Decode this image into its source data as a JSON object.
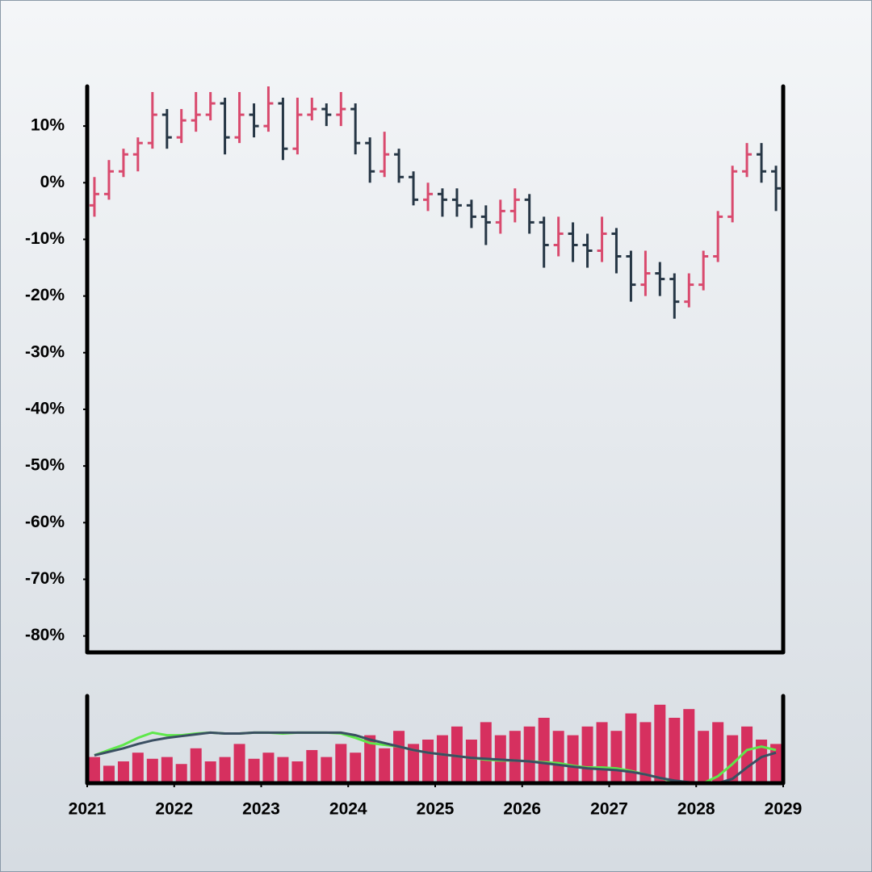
{
  "chart_data": [
    {
      "type": "ohlc",
      "x": [
        2021.083,
        2021.25,
        2021.417,
        2021.583,
        2021.75,
        2021.917,
        2022.083,
        2022.25,
        2022.417,
        2022.583,
        2022.75,
        2022.917,
        2023.083,
        2023.25,
        2023.417,
        2023.583,
        2023.75,
        2023.917,
        2024.083,
        2024.25,
        2024.417,
        2024.583,
        2024.75,
        2024.917,
        2025.083,
        2025.25,
        2025.417,
        2025.583,
        2025.75,
        2025.917,
        2026.083,
        2026.25,
        2026.417,
        2026.583,
        2026.75,
        2026.917,
        2027.083,
        2027.25,
        2027.417,
        2027.583,
        2027.75,
        2027.917,
        2028.083,
        2028.25,
        2028.417,
        2028.583,
        2028.75,
        2028.917
      ],
      "open": [
        -4,
        -2,
        2,
        5,
        7,
        12,
        8,
        11,
        12,
        14,
        8,
        12,
        10,
        14,
        6,
        12,
        13,
        12,
        13,
        7,
        2,
        5,
        1,
        -3,
        -2,
        -3,
        -4,
        -6,
        -7,
        -5,
        -3,
        -7,
        -11,
        -9,
        -11,
        -12,
        -9,
        -13,
        -18,
        -16,
        -17,
        -21,
        -18,
        -13,
        -6,
        2,
        5,
        2
      ],
      "high": [
        1,
        4,
        6,
        8,
        16,
        13,
        13,
        16,
        16,
        15,
        16,
        14,
        17,
        15,
        15,
        15,
        14,
        16,
        14,
        8,
        9,
        6,
        2,
        0,
        -1,
        -1,
        -3,
        -4,
        -3,
        -1,
        -2,
        -6,
        -6,
        -7,
        -9,
        -6,
        -8,
        -12,
        -12,
        -14,
        -16,
        -16,
        -12,
        -5,
        3,
        7,
        7,
        3
      ],
      "low": [
        -6,
        -3,
        1,
        2,
        6,
        6,
        7,
        9,
        11,
        5,
        7,
        8,
        9,
        4,
        5,
        11,
        10,
        10,
        5,
        0,
        1,
        0,
        -4,
        -5,
        -6,
        -6,
        -8,
        -11,
        -9,
        -7,
        -9,
        -15,
        -13,
        -14,
        -15,
        -14,
        -16,
        -21,
        -20,
        -20,
        -24,
        -22,
        -19,
        -14,
        -7,
        1,
        0,
        -5
      ],
      "close": [
        -2,
        2,
        5,
        7,
        12,
        8,
        11,
        12,
        14,
        8,
        12,
        10,
        14,
        6,
        12,
        13,
        12,
        13,
        7,
        2,
        5,
        1,
        -3,
        -2,
        -3,
        -4,
        -6,
        -7,
        -5,
        -3,
        -7,
        -11,
        -9,
        -11,
        -12,
        -9,
        -13,
        -18,
        -16,
        -17,
        -21,
        -18,
        -13,
        -6,
        2,
        5,
        2,
        -1
      ],
      "up_color": "#d94a6e",
      "down_color": "#263645",
      "xlim": [
        2021,
        2029
      ],
      "ylim": [
        -82.9,
        17
      ],
      "yticks": [
        {
          "value": 10,
          "label": "10%"
        },
        {
          "value": 0,
          "label": "0%"
        },
        {
          "value": -10,
          "label": "-10%"
        },
        {
          "value": -20,
          "label": "-20%"
        },
        {
          "value": -30,
          "label": "-30%"
        },
        {
          "value": -40,
          "label": "-40%"
        },
        {
          "value": -50,
          "label": "-50%"
        },
        {
          "value": -60,
          "label": "-60%"
        },
        {
          "value": -70,
          "label": "-70%"
        },
        {
          "value": -80,
          "label": "-80%"
        }
      ]
    },
    {
      "type": "bar",
      "x": [
        2021.083,
        2021.25,
        2021.417,
        2021.583,
        2021.75,
        2021.917,
        2022.083,
        2022.25,
        2022.417,
        2022.583,
        2022.75,
        2022.917,
        2023.083,
        2023.25,
        2023.417,
        2023.583,
        2023.75,
        2023.917,
        2024.083,
        2024.25,
        2024.417,
        2024.583,
        2024.75,
        2024.917,
        2025.083,
        2025.25,
        2025.417,
        2025.583,
        2025.75,
        2025.917,
        2026.083,
        2026.25,
        2026.417,
        2026.583,
        2026.75,
        2026.917,
        2027.083,
        2027.25,
        2027.417,
        2027.583,
        2027.75,
        2027.917,
        2028.083,
        2028.25,
        2028.417,
        2028.583,
        2028.75,
        2028.917
      ],
      "values": [
        30,
        20,
        25,
        35,
        28,
        30,
        22,
        40,
        25,
        30,
        45,
        28,
        35,
        30,
        25,
        38,
        30,
        45,
        35,
        55,
        40,
        60,
        45,
        50,
        55,
        65,
        50,
        70,
        55,
        60,
        65,
        75,
        60,
        55,
        65,
        70,
        60,
        80,
        70,
        90,
        75,
        85,
        60,
        70,
        55,
        65,
        50,
        45
      ],
      "color": "#d6305f",
      "series": [
        {
          "color": "#5ee84a",
          "values": [
            32,
            38,
            44,
            52,
            58,
            55,
            55,
            57,
            58,
            57,
            57,
            58,
            58,
            57,
            58,
            58,
            58,
            57,
            52,
            46,
            44,
            42,
            38,
            35,
            33,
            31,
            29,
            27,
            26,
            26,
            25,
            24,
            23,
            20,
            18,
            18,
            17,
            14,
            10,
            6,
            2,
            0,
            0,
            8,
            22,
            38,
            42,
            38
          ]
        },
        {
          "color": "#3a4f62",
          "values": [
            32,
            36,
            40,
            45,
            49,
            52,
            54,
            56,
            58,
            57,
            57,
            58,
            58,
            58,
            58,
            58,
            58,
            58,
            55,
            50,
            46,
            42,
            38,
            35,
            33,
            31,
            29,
            28,
            27,
            26,
            25,
            23,
            21,
            19,
            17,
            16,
            15,
            13,
            10,
            6,
            3,
            1,
            0,
            0,
            5,
            18,
            30,
            35
          ]
        }
      ],
      "xlim": [
        2021,
        2029
      ],
      "xticks": [
        2021,
        2022,
        2023,
        2024,
        2025,
        2026,
        2027,
        2028,
        2029
      ],
      "ylim": [
        0,
        100
      ]
    }
  ]
}
